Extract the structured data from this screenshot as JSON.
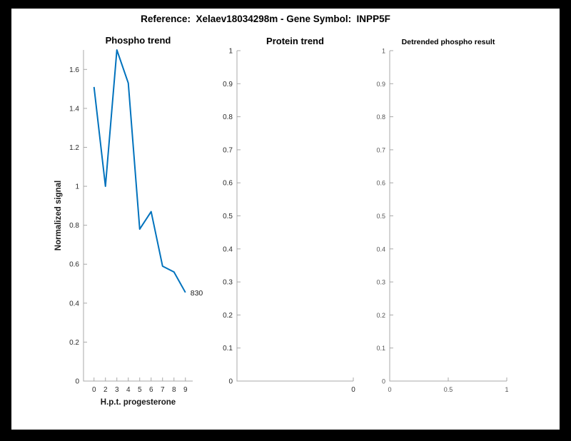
{
  "figure": {
    "title": "Reference:  Xelaev18034298m - Gene Symbol:  INPP5F",
    "background_color": "#000000",
    "canvas_color": "#ffffff"
  },
  "colors": {
    "line": "#0072BD",
    "axis": "#a8a8a8",
    "tick_label": "#2b2b2b",
    "tick_label_small": "#555555",
    "title_text": "#000000",
    "annotation_text": "#1a1a1a"
  },
  "chart_data": [
    {
      "type": "line",
      "title": "Phospho trend",
      "xlabel": "H.p.t. progesterone",
      "ylabel": "Normalized signal",
      "x": [
        1,
        2,
        3,
        4,
        5,
        6,
        7,
        8,
        9
      ],
      "values": [
        1.51,
        1.0,
        1.7,
        1.53,
        0.78,
        0.87,
        0.59,
        0.56,
        0.455
      ],
      "end_annotation": "830",
      "xlim": [
        0.08,
        9.64
      ],
      "ylim": [
        0,
        1.7
      ],
      "x_ticks": [
        1,
        2,
        3,
        4,
        5,
        6,
        7,
        8,
        9
      ],
      "x_tick_labels": [
        "0",
        "2",
        "3",
        "4",
        "5",
        "6",
        "7",
        "8",
        "9"
      ],
      "y_ticks": [
        0,
        0.2,
        0.4,
        0.6,
        0.8,
        1,
        1.2,
        1.4,
        1.6
      ],
      "y_tick_labels": [
        "0",
        "0.2",
        "0.4",
        "0.6",
        "0.8",
        "1",
        "1.2",
        "1.4",
        "1.6"
      ],
      "grid": false,
      "legend": null
    },
    {
      "type": "line",
      "title": "Protein trend",
      "xlabel": "",
      "ylabel": "",
      "x": [],
      "values": [],
      "end_annotation": "",
      "xlim": [
        0,
        1
      ],
      "ylim": [
        0,
        1
      ],
      "x_ticks": [
        1
      ],
      "x_tick_labels": [
        "0"
      ],
      "y_ticks": [
        0,
        0.1,
        0.2,
        0.3,
        0.4,
        0.5,
        0.6,
        0.7,
        0.8,
        0.9,
        1
      ],
      "y_tick_labels": [
        "0",
        "0.1",
        "0.2",
        "0.3",
        "0.4",
        "0.5",
        "0.6",
        "0.7",
        "0.8",
        "0.9",
        "1"
      ],
      "grid": false,
      "legend": null
    },
    {
      "type": "line",
      "title": "Detrended phospho result",
      "xlabel": "",
      "ylabel": "",
      "x": [],
      "values": [],
      "end_annotation": "",
      "xlim": [
        0,
        1
      ],
      "ylim": [
        0,
        1
      ],
      "x_ticks": [
        0,
        0.5,
        1
      ],
      "x_tick_labels": [
        "0",
        "0.5",
        "1"
      ],
      "y_ticks": [
        0,
        0.1,
        0.2,
        0.3,
        0.4,
        0.5,
        0.6,
        0.7,
        0.8,
        0.9,
        1
      ],
      "y_tick_labels": [
        "0",
        "0.1",
        "0.2",
        "0.3",
        "0.4",
        "0.5",
        "0.6",
        "0.7",
        "0.8",
        "0.9",
        "1"
      ],
      "grid": false,
      "legend": null
    }
  ]
}
